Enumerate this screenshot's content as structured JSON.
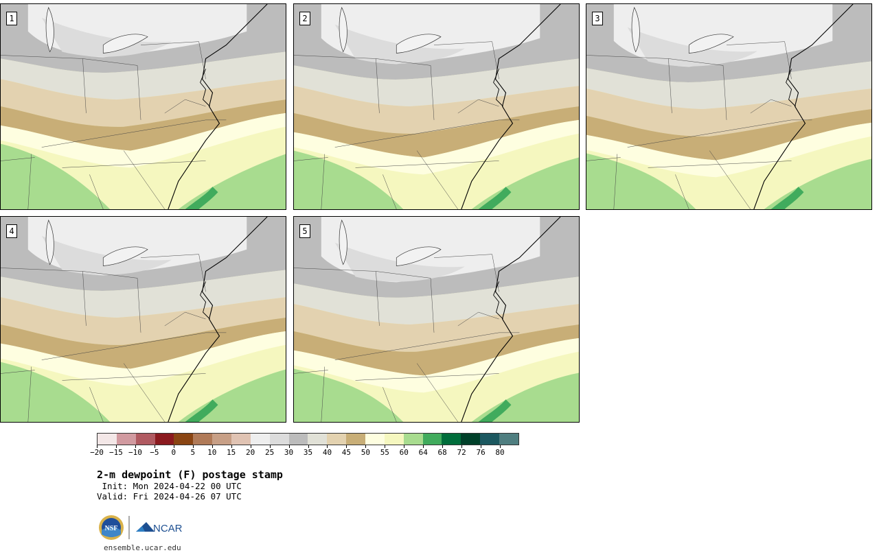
{
  "panels": [
    {
      "label": "1"
    },
    {
      "label": "2"
    },
    {
      "label": "3"
    },
    {
      "label": "4"
    },
    {
      "label": "5"
    }
  ],
  "colorbar": {
    "colors": [
      "#f3e7e7",
      "#d19aa0",
      "#b05a61",
      "#8b1a1f",
      "#8a4513",
      "#b07a58",
      "#c79f86",
      "#e0c3b3",
      "#eeeeee",
      "#dcdcdc",
      "#bcbcbc",
      "#e1e1d7",
      "#e3d2b0",
      "#c8ae77",
      "#fefee0",
      "#f5f7bf",
      "#a8dc8f",
      "#41ab5d",
      "#006d3b",
      "#00402a",
      "#1c5860",
      "#4f7e80"
    ],
    "tick_labels": [
      "−20",
      "−15",
      "−10",
      "−5",
      "0",
      "5",
      "10",
      "15",
      "20",
      "25",
      "30",
      "35",
      "40",
      "45",
      "50",
      "55",
      "60",
      "64",
      "68",
      "72",
      "76",
      "80"
    ]
  },
  "title": "2-m dewpoint (F) postage stamp",
  "init": " Init: Mon 2024-04-22 00 UTC",
  "valid": "Valid: Fri 2024-04-26 07 UTC",
  "logos": {
    "nsf_text": "NSF",
    "ncar_text": "NCAR"
  },
  "url": "ensemble.ucar.edu"
}
